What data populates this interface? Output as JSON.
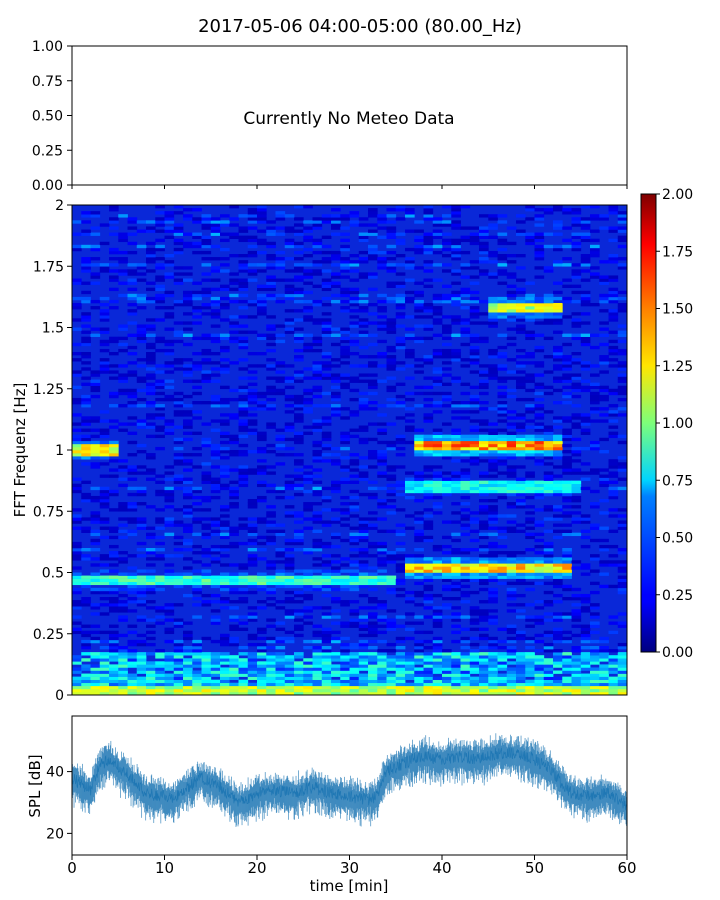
{
  "chart_data": [
    {
      "type": "line",
      "panel": "meteo",
      "title": "2017-05-06 04:00-05:00 (80.00_Hz)",
      "yticks": [
        "0.00",
        "0.25",
        "0.50",
        "0.75",
        "1.00"
      ],
      "ylim": [
        0,
        1
      ],
      "xlim": [
        0,
        60
      ],
      "annotation": "Currently No Meteo Data",
      "series": []
    },
    {
      "type": "heatmap",
      "panel": "spectrogram",
      "ylabel": "FFT Frequenz [Hz]",
      "yticks": [
        "0",
        "0.25",
        "0.5",
        "0.75",
        "1",
        "1.25",
        "1.5",
        "1.75",
        "2"
      ],
      "ylim": [
        0,
        2
      ],
      "xlim": [
        0,
        60
      ],
      "colormap": "jet",
      "colorbar": {
        "min": 0,
        "max": 2,
        "ticks": [
          "0.00",
          "0.25",
          "0.50",
          "0.75",
          "1.00",
          "1.25",
          "1.50",
          "1.75",
          "2.00"
        ]
      },
      "features": [
        {
          "freq_hz": 1.0,
          "t_range": [
            0,
            5
          ],
          "level": 1.4
        },
        {
          "freq_hz": 1.02,
          "t_range": [
            37,
            53
          ],
          "level": 1.7
        },
        {
          "freq_hz": 0.52,
          "t_range": [
            36,
            54
          ],
          "level": 1.5
        },
        {
          "freq_hz": 0.47,
          "t_range": [
            0,
            35
          ],
          "level": 1.0
        },
        {
          "freq_hz": 1.58,
          "t_range": [
            45,
            53
          ],
          "level": 1.3
        },
        {
          "freq_hz": 0.85,
          "t_range": [
            36,
            55
          ],
          "level": 0.9
        },
        {
          "freq_hz": 0.02,
          "t_range": [
            0,
            60
          ],
          "level": 1.3
        }
      ]
    },
    {
      "type": "line",
      "panel": "spl",
      "xlabel": "time [min]",
      "ylabel": "SPL [dB]",
      "xticks": [
        "0",
        "10",
        "20",
        "30",
        "40",
        "50",
        "60"
      ],
      "yticks": [
        "20",
        "40"
      ],
      "xlim": [
        0,
        60
      ],
      "ylim": [
        13,
        58
      ],
      "color": "#1f77b4",
      "series": [
        {
          "x": [
            0,
            2,
            3,
            4,
            6,
            8,
            10,
            11,
            12,
            14,
            16,
            18,
            20,
            22,
            24,
            26,
            28,
            30,
            32,
            33,
            34,
            36,
            38,
            40,
            42,
            44,
            46,
            48,
            50,
            51,
            52,
            53,
            54,
            56,
            58,
            60
          ],
          "y": [
            38,
            34,
            42,
            44,
            39,
            33,
            32,
            31,
            34,
            38,
            35,
            30,
            33,
            34,
            33,
            35,
            33,
            32,
            31,
            32,
            40,
            43,
            45,
            44,
            45,
            44,
            46,
            46,
            44,
            42,
            40,
            36,
            33,
            32,
            33,
            29
          ]
        }
      ]
    }
  ]
}
